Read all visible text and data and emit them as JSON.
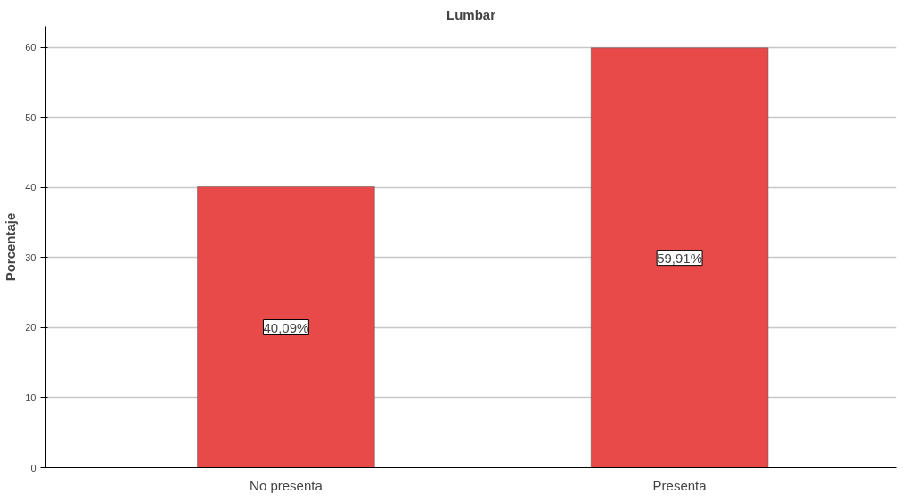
{
  "chart_data": {
    "type": "bar",
    "title": "Lumbar",
    "ylabel": "Porcentaje",
    "categories": [
      "No presenta",
      "Presenta"
    ],
    "values": [
      40.09,
      59.91
    ],
    "value_labels": [
      "40,09%",
      "59,91%"
    ],
    "color": "#e84a4a",
    "ylim": [
      0,
      63
    ],
    "yticks": [
      0,
      10,
      20,
      30,
      40,
      50,
      60
    ],
    "grid": "y"
  }
}
